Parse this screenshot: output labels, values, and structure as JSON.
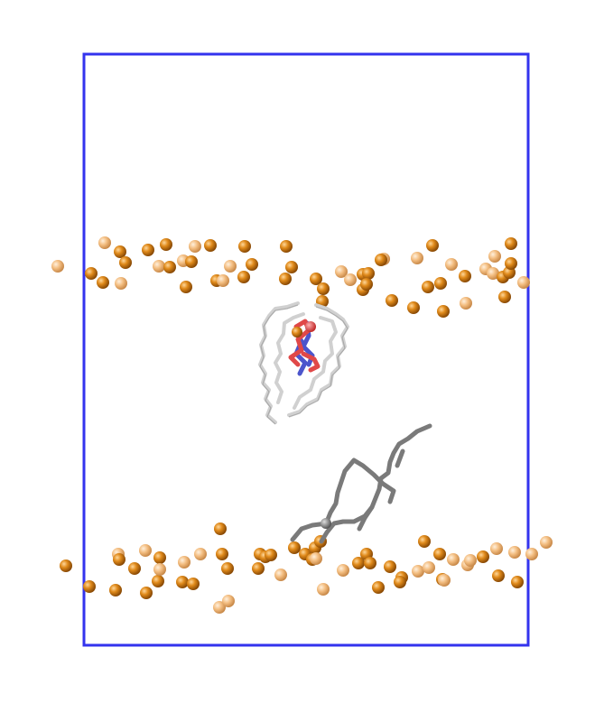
{
  "scene": {
    "subject": "molecular-dynamics-membrane-snapshot",
    "colors": {
      "background": "#ffffff",
      "box": "#3333ee",
      "headgroup_dark": "#d9800f",
      "headgroup_light": "#f2b774",
      "lipid_tail_white": "#d8d8d8",
      "lipid_tail_gray": "#777777",
      "ligand_red": "#e04848",
      "ligand_blue": "#4c55cc"
    },
    "elements": [
      "simulation-box",
      "upper-leaflet-headgroups",
      "lower-leaflet-headgroups",
      "white-lipid",
      "gray-lipid",
      "bound-ligand"
    ]
  }
}
